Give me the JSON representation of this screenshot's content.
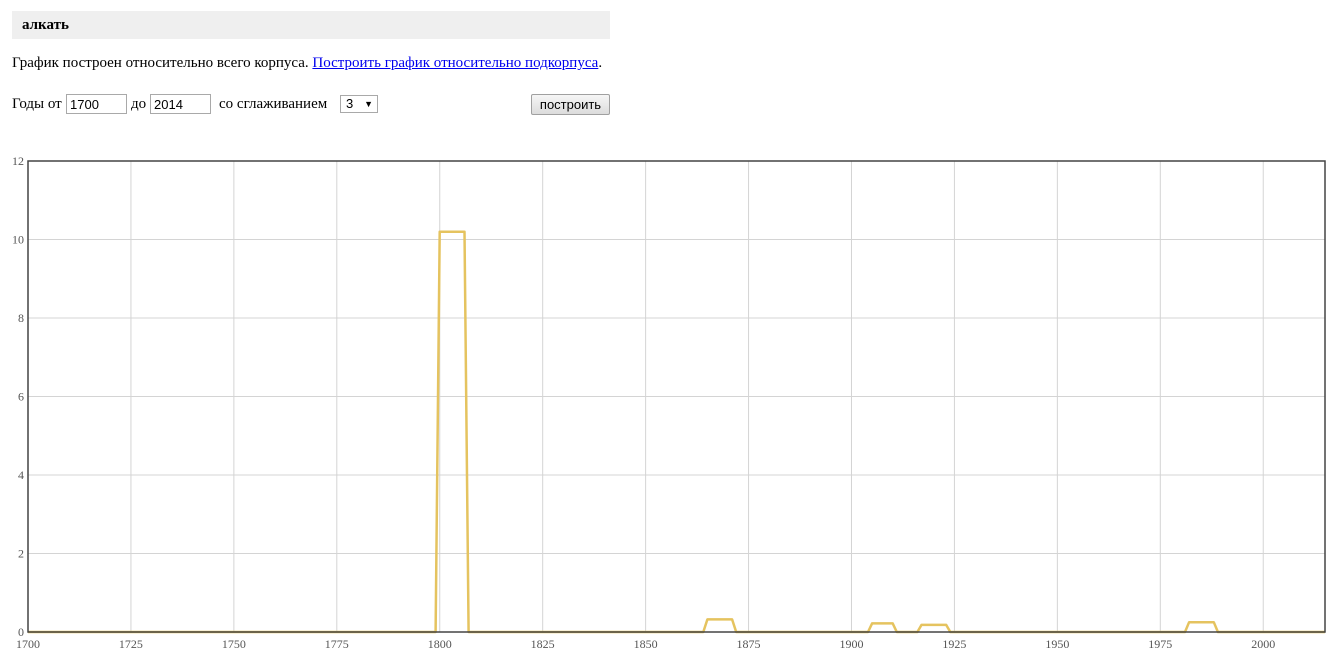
{
  "header": {
    "title": "алкать"
  },
  "info": {
    "text": "График построен относительно всего корпуса.",
    "link": "Построить график относительно подкорпуса",
    "period": "."
  },
  "controls": {
    "years_label": "Годы от",
    "from_value": "1700",
    "to_label": "до",
    "to_value": "2014",
    "smoothing_label": "со сглаживанием",
    "smoothing_value": "3",
    "build_label": "построить"
  },
  "chart_data": {
    "type": "line",
    "xlim": [
      1700,
      2015
    ],
    "ylim": [
      0,
      12
    ],
    "x_ticks": [
      1700,
      1725,
      1750,
      1775,
      1800,
      1825,
      1850,
      1875,
      1900,
      1925,
      1950,
      1975,
      2000
    ],
    "y_ticks": [
      0,
      2,
      4,
      6,
      8,
      10,
      12
    ],
    "grid": true,
    "line_color": "#e5c35f",
    "series": [
      {
        "x": [
          1700,
          1799,
          1800,
          1806,
          1807,
          1864,
          1865,
          1871,
          1872,
          1904,
          1905,
          1910,
          1911,
          1916,
          1917,
          1923,
          1924,
          1981,
          1982,
          1988,
          1989,
          2015
        ],
        "values": [
          0,
          0,
          10.2,
          10.2,
          0,
          0,
          0.32,
          0.32,
          0,
          0,
          0.22,
          0.22,
          0,
          0,
          0.18,
          0.18,
          0,
          0,
          0.25,
          0.25,
          0,
          0
        ]
      }
    ]
  }
}
